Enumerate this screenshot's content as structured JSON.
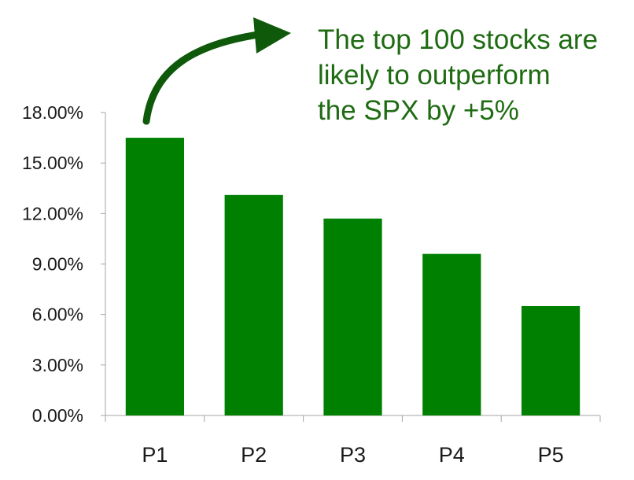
{
  "chart_data": {
    "type": "bar",
    "categories": [
      "P1",
      "P2",
      "P3",
      "P4",
      "P5"
    ],
    "values": [
      16.5,
      13.1,
      11.7,
      9.6,
      6.5
    ],
    "yticks": [
      "0.00%",
      "3.00%",
      "6.00%",
      "9.00%",
      "12.00%",
      "15.00%",
      "18.00%"
    ],
    "ylim": [
      0,
      18
    ],
    "bar_color": "#008000",
    "annotation": {
      "lines": [
        "The top 100 stocks are",
        "likely to outperform",
        "the SPX by +5%"
      ],
      "color": "#1e6b12",
      "arrow_color": "#0f5a0a"
    }
  }
}
